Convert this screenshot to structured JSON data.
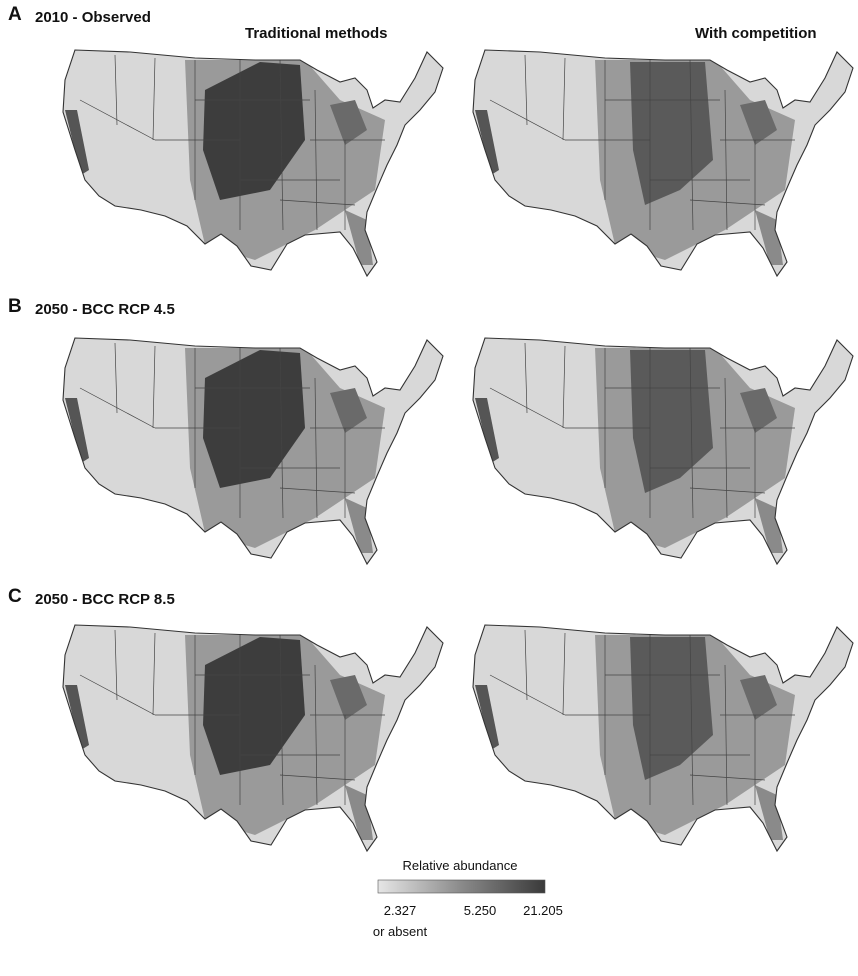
{
  "panels": [
    {
      "letter": "A",
      "title": "2010 - Observed"
    },
    {
      "letter": "B",
      "title": "2050 - BCC RCP 4.5"
    },
    {
      "letter": "C",
      "title": "2050 - BCC RCP 8.5"
    }
  ],
  "columns": [
    "Traditional methods",
    "With competition"
  ],
  "legend": {
    "title": "Relative abundance",
    "labels": [
      "2.327",
      "5.250",
      "21.205"
    ],
    "note": "or absent"
  }
}
